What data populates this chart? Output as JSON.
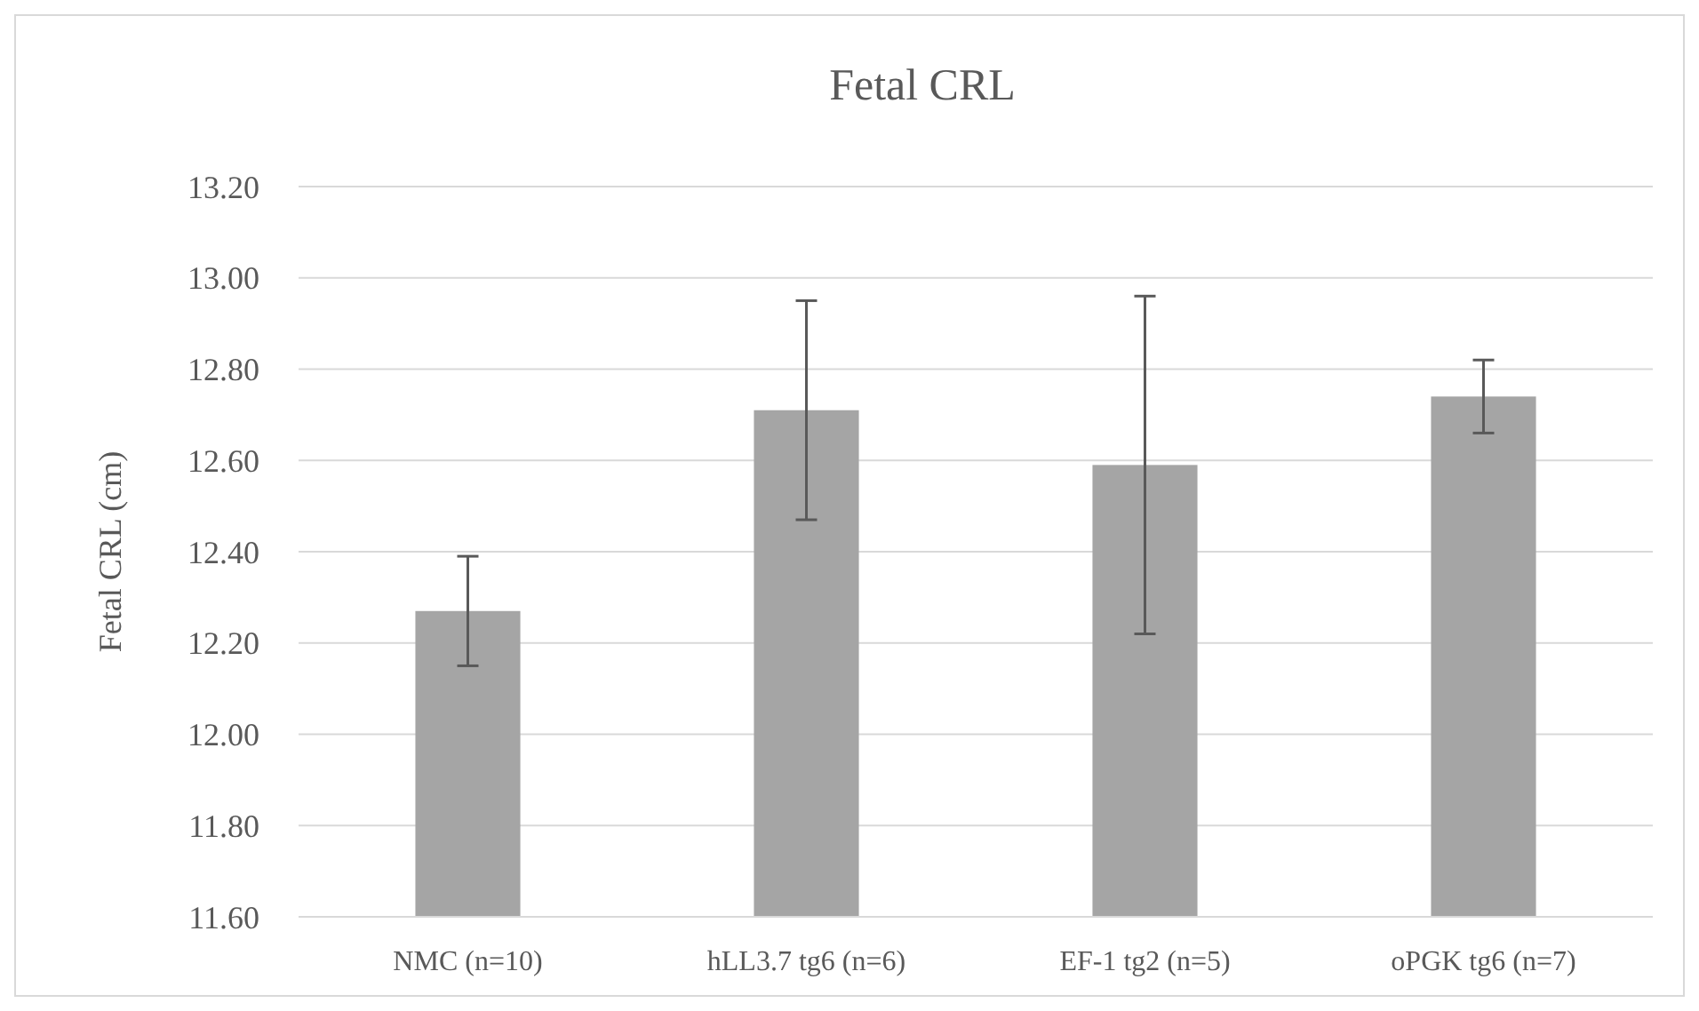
{
  "chart_data": {
    "type": "bar",
    "title": "Fetal CRL",
    "ylabel": "Fetal CRL (cm)",
    "categories": [
      "NMC (n=10)",
      "hLL3.7 tg6 (n=6)",
      "EF-1 tg2 (n=5)",
      "oPGK tg6 (n=7)"
    ],
    "series": [
      {
        "color": "#a5a5a5",
        "values": [
          12.27,
          12.71,
          12.59,
          12.74
        ],
        "errors": [
          0.12,
          0.24,
          0.37,
          0.08
        ]
      }
    ],
    "ylim": [
      11.6,
      13.2
    ],
    "yticks": [
      {
        "value": 11.6,
        "label": "11.60"
      },
      {
        "value": 11.8,
        "label": "11.80"
      },
      {
        "value": 12.0,
        "label": "12.00"
      },
      {
        "value": 12.2,
        "label": "12.20"
      },
      {
        "value": 12.4,
        "label": "12.40"
      },
      {
        "value": 12.6,
        "label": "12.60"
      },
      {
        "value": 12.8,
        "label": "12.80"
      },
      {
        "value": 13.0,
        "label": "13.00"
      },
      {
        "value": 13.2,
        "label": "13.20"
      }
    ],
    "grid": "y"
  }
}
